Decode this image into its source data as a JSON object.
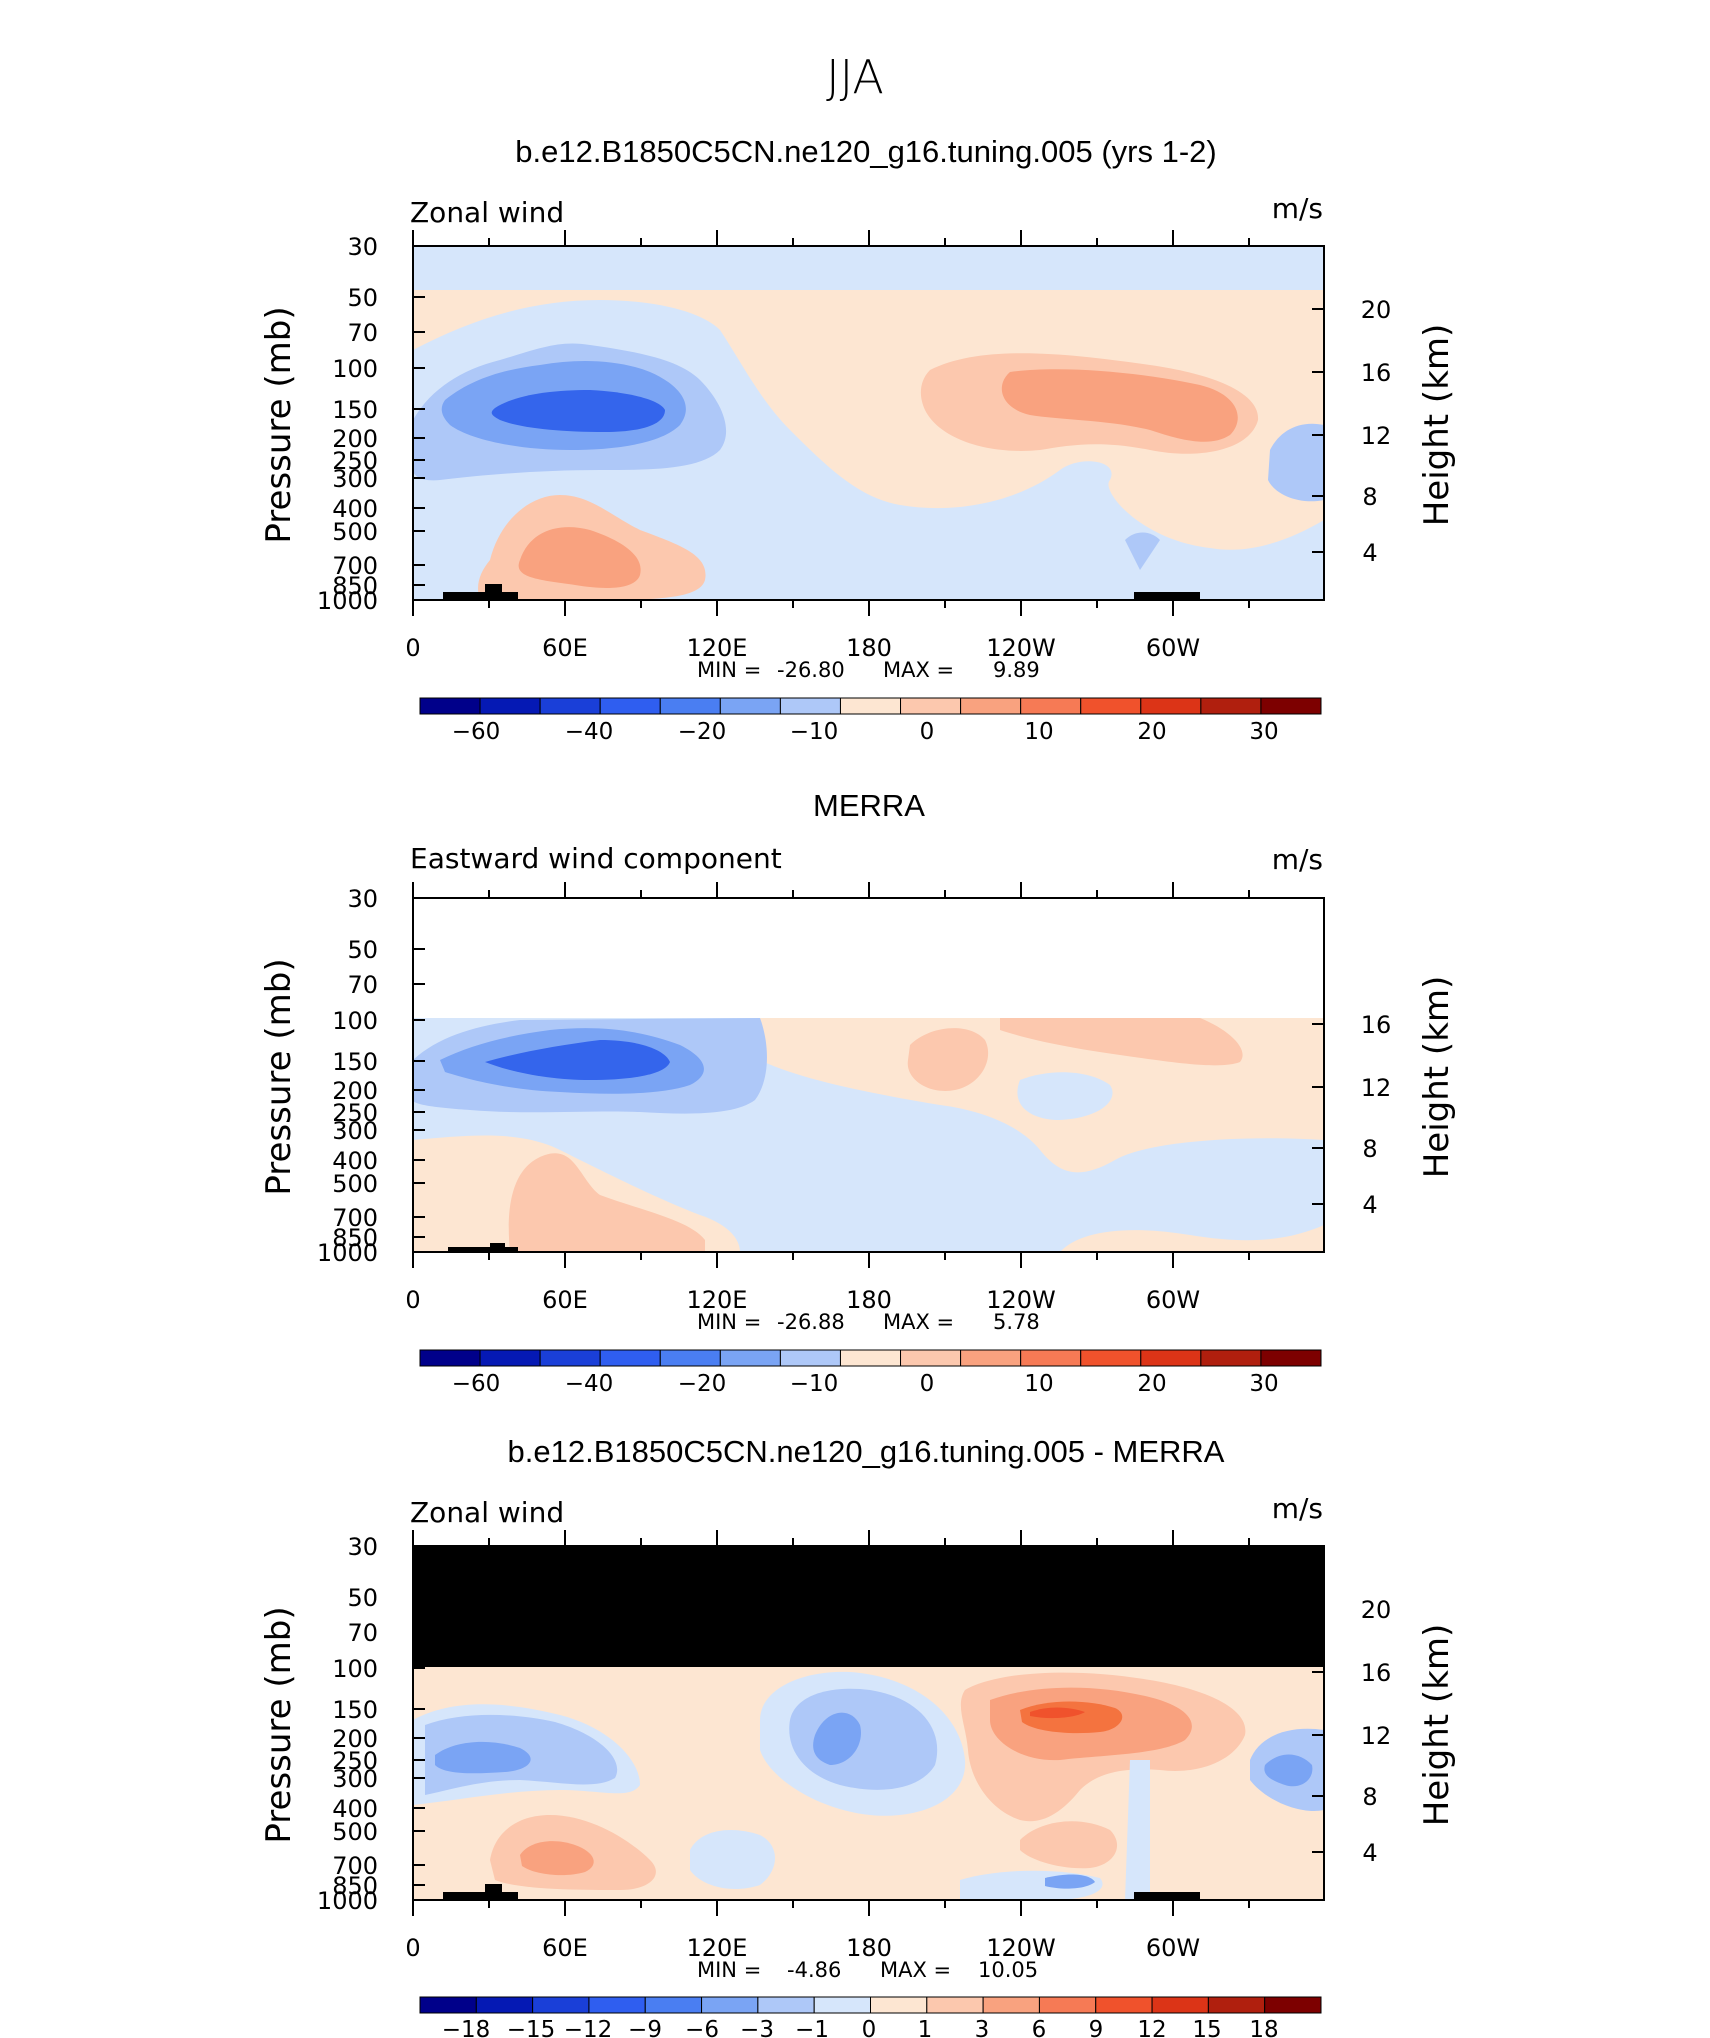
{
  "figure": {
    "title": "JJA"
  },
  "y_ticks": [
    "30",
    "50",
    "70",
    "100",
    "150",
    "200",
    "250",
    "300",
    "400",
    "500",
    "700",
    "850",
    "1000"
  ],
  "x_ticks": [
    "0",
    "60E",
    "120E",
    "180",
    "120W",
    "60W"
  ],
  "chart_data": [
    {
      "type": "heatmap",
      "title": "b.e12.B1850C5CN.ne120_g16.tuning.005 (yrs 1-2)",
      "field_label": "Zonal wind",
      "units": "m/s",
      "ylabel": "Pressure (mb)",
      "ylabel_right": "Height (km)",
      "right_ticks": [
        "20",
        "16",
        "12",
        "8",
        "4"
      ],
      "min_label": "MIN = ",
      "min_value": "-26.80",
      "max_label": "MAX = ",
      "max_value": "9.89",
      "colorbar": {
        "levels": [
          -70,
          -60,
          -50,
          -40,
          -30,
          -20,
          -15,
          -10,
          -5,
          0,
          5,
          10,
          15,
          20,
          25,
          30
        ],
        "tick_labels": [
          "−60",
          "−40",
          "−20",
          "−10",
          "0",
          "10",
          "20",
          "30"
        ]
      }
    },
    {
      "type": "heatmap",
      "title": "MERRA",
      "field_label": "Eastward wind component",
      "units": "m/s",
      "ylabel": "Pressure (mb)",
      "ylabel_right": "Height (km)",
      "right_ticks": [
        "16",
        "12",
        "8",
        "4"
      ],
      "min_label": "MIN = ",
      "min_value": "-26.88",
      "max_label": "MAX = ",
      "max_value": "5.78",
      "colorbar": {
        "levels": [
          -70,
          -60,
          -50,
          -40,
          -30,
          -20,
          -15,
          -10,
          -5,
          0,
          5,
          10,
          15,
          20,
          25,
          30
        ],
        "tick_labels": [
          "−60",
          "−40",
          "−20",
          "−10",
          "0",
          "10",
          "20",
          "30"
        ]
      }
    },
    {
      "type": "heatmap",
      "title": "b.e12.B1850C5CN.ne120_g16.tuning.005 - MERRA",
      "field_label": "Zonal wind",
      "units": "m/s",
      "ylabel": "Pressure (mb)",
      "ylabel_right": "Height (km)",
      "right_ticks": [
        "20",
        "16",
        "12",
        "8",
        "4"
      ],
      "min_label": "MIN = ",
      "min_value": "-4.86",
      "max_label": "MAX = ",
      "max_value": "10.05",
      "colorbar": {
        "levels": [
          -21,
          -18,
          -15,
          -12,
          -9,
          -6,
          -3,
          -1,
          0,
          1,
          3,
          6,
          9,
          12,
          15,
          18,
          21
        ],
        "tick_labels": [
          "−18",
          "−15",
          "−12",
          "−9",
          "−6",
          "−3",
          "−1",
          "0",
          "1",
          "3",
          "6",
          "9",
          "12",
          "15",
          "18"
        ]
      }
    }
  ],
  "colors": {
    "scale": [
      "#00008a",
      "#0519b4",
      "#1a3fd8",
      "#2f5ef0",
      "#4a7ef2",
      "#7aa4f4",
      "#aec8f8",
      "#d6e6fb",
      "#fde6d2",
      "#fcc8ae",
      "#f9a27f",
      "#f67a55",
      "#f0522c",
      "#dc3417",
      "#b01f0e",
      "#7d0000"
    ],
    "blue_strong": "#3465ec",
    "blue_mid": "#6f95f1",
    "blue_light": "#a9c4f7",
    "blue_pale": "#d6e6fb",
    "orange_pale": "#fde6d2",
    "orange_light": "#fcc8ae",
    "orange_mid": "#f9a27f",
    "orange_strong": "#f4733f",
    "orange_deep": "#f0522c",
    "land": "#000000"
  }
}
